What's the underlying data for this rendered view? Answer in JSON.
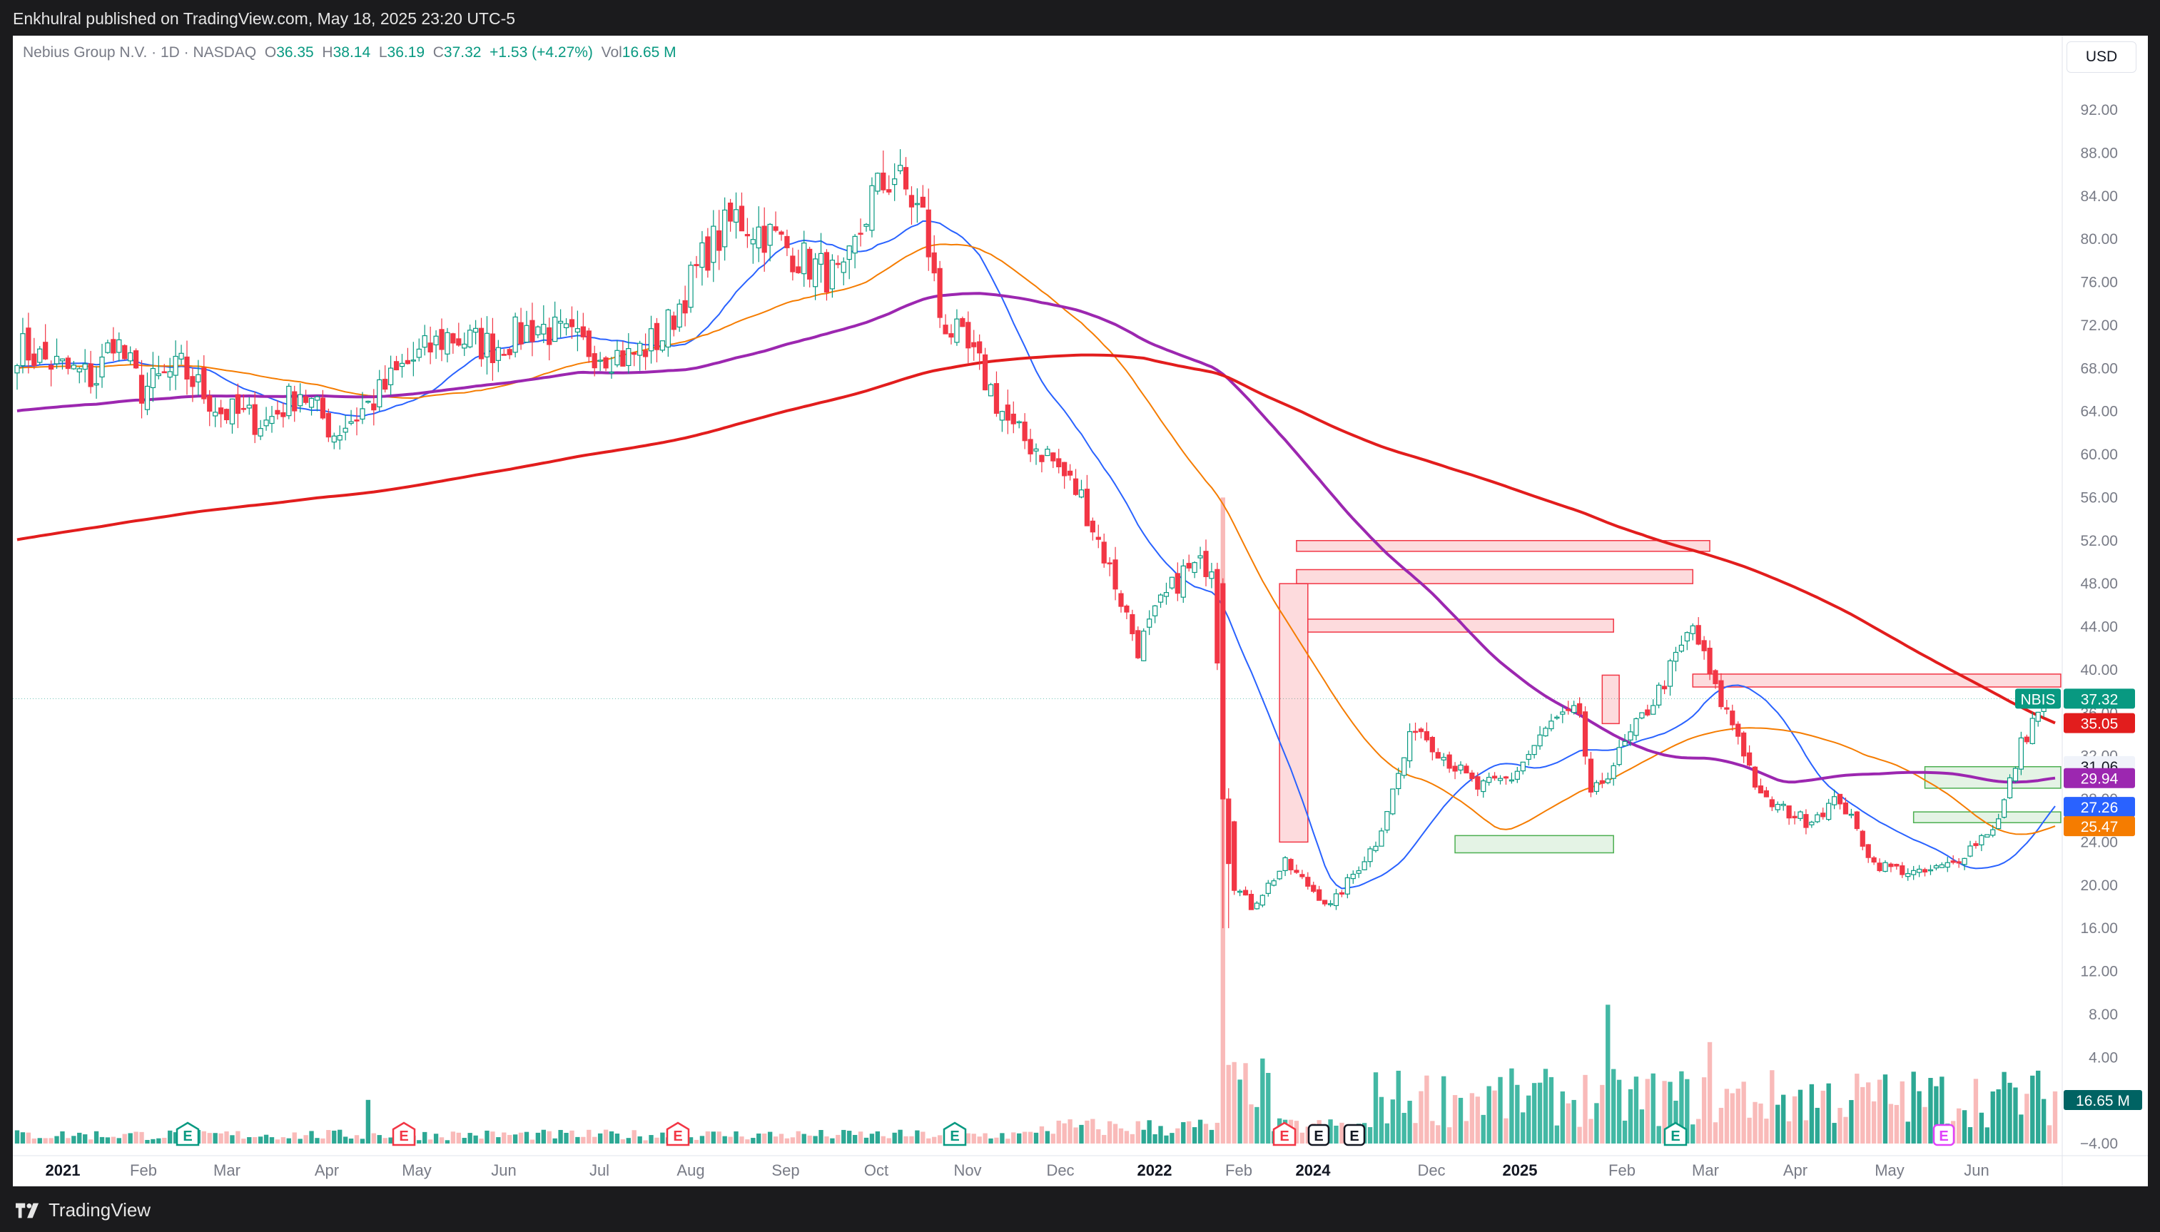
{
  "header": {
    "published": "Enkhulral published on TradingView.com, May 18, 2025 23:20 UTC-5"
  },
  "footer": {
    "brand": "TradingView"
  },
  "legend": {
    "symbol": "Nebius Group N.V. · 1D · NASDAQ",
    "o_label": "O",
    "o": "36.35",
    "h_label": "H",
    "h": "38.14",
    "l_label": "L",
    "l": "36.19",
    "c_label": "C",
    "c": "37.32",
    "change": "+1.53 (+4.27%)",
    "vol_label": "Vol",
    "vol": "16.65 M"
  },
  "currency": "USD",
  "colors": {
    "up": "#089981",
    "down": "#f23645",
    "ma20": "#2962ff",
    "ma50": "#f57c00",
    "ma100": "#9c27b0",
    "ma200": "#e21d1d",
    "supply": "#f23645",
    "demand": "#4caf50"
  },
  "chart_data": {
    "type": "candlestick",
    "y_axis_ticks": [
      "92.00",
      "88.00",
      "84.00",
      "80.00",
      "76.00",
      "72.00",
      "68.00",
      "64.00",
      "60.00",
      "56.00",
      "52.00",
      "48.00",
      "44.00",
      "40.00",
      "36.00",
      "32.00",
      "28.00",
      "24.00",
      "20.00",
      "16.00",
      "12.00",
      "8.00",
      "4.00",
      "0.000",
      "−4.00"
    ],
    "x_axis_labels": [
      "2021",
      "Feb",
      "Mar",
      "Apr",
      "May",
      "Jun",
      "Jul",
      "Aug",
      "Sep",
      "Oct",
      "Nov",
      "Dec",
      "2022",
      "Feb",
      "2024",
      "Dec",
      "2025",
      "Feb",
      "Mar",
      "Apr",
      "May",
      "Jun"
    ],
    "price_anchors": [
      {
        "i": 0,
        "p": 70
      },
      {
        "i": 8,
        "p": 68
      },
      {
        "i": 14,
        "p": 67
      },
      {
        "i": 17,
        "p": 71
      },
      {
        "i": 22,
        "p": 66
      },
      {
        "i": 29,
        "p": 68
      },
      {
        "i": 36,
        "p": 64
      },
      {
        "i": 44,
        "p": 63
      },
      {
        "i": 50,
        "p": 66
      },
      {
        "i": 56,
        "p": 62
      },
      {
        "i": 63,
        "p": 65
      },
      {
        "i": 68,
        "p": 68
      },
      {
        "i": 76,
        "p": 71
      },
      {
        "i": 84,
        "p": 70
      },
      {
        "i": 92,
        "p": 72
      },
      {
        "i": 100,
        "p": 70
      },
      {
        "i": 108,
        "p": 69
      },
      {
        "i": 114,
        "p": 71
      },
      {
        "i": 122,
        "p": 79
      },
      {
        "i": 127,
        "p": 82
      },
      {
        "i": 134,
        "p": 80
      },
      {
        "i": 139,
        "p": 78
      },
      {
        "i": 146,
        "p": 76
      },
      {
        "i": 151,
        "p": 84
      },
      {
        "i": 155,
        "p": 86
      },
      {
        "i": 160,
        "p": 82
      },
      {
        "i": 163,
        "p": 73
      },
      {
        "i": 170,
        "p": 68
      },
      {
        "i": 176,
        "p": 62
      },
      {
        "i": 182,
        "p": 60
      },
      {
        "i": 188,
        "p": 56
      },
      {
        "i": 194,
        "p": 48
      },
      {
        "i": 198,
        "p": 42
      },
      {
        "i": 202,
        "p": 46
      },
      {
        "i": 206,
        "p": 49
      },
      {
        "i": 211,
        "p": 50
      },
      {
        "i": 213,
        "p": 33
      },
      {
        "i": 215,
        "p": 20
      },
      {
        "i": 218,
        "p": 18
      },
      {
        "i": 224,
        "p": 22
      },
      {
        "i": 232,
        "p": 18
      },
      {
        "i": 240,
        "p": 24
      },
      {
        "i": 247,
        "p": 35
      },
      {
        "i": 252,
        "p": 32
      },
      {
        "i": 258,
        "p": 29
      },
      {
        "i": 264,
        "p": 30
      },
      {
        "i": 271,
        "p": 35
      },
      {
        "i": 276,
        "p": 36
      },
      {
        "i": 278,
        "p": 28
      },
      {
        "i": 284,
        "p": 33
      },
      {
        "i": 290,
        "p": 38
      },
      {
        "i": 296,
        "p": 44
      },
      {
        "i": 300,
        "p": 38
      },
      {
        "i": 304,
        "p": 34
      },
      {
        "i": 308,
        "p": 28
      },
      {
        "i": 316,
        "p": 26
      },
      {
        "i": 322,
        "p": 28
      },
      {
        "i": 328,
        "p": 22
      },
      {
        "i": 336,
        "p": 21
      },
      {
        "i": 342,
        "p": 22
      },
      {
        "i": 346,
        "p": 24
      },
      {
        "i": 350,
        "p": 26
      },
      {
        "i": 354,
        "p": 33
      },
      {
        "i": 358,
        "p": 37.3
      }
    ],
    "moving_averages": [
      {
        "period": 20,
        "last": "27.26"
      },
      {
        "period": 50,
        "last": "25.47"
      },
      {
        "period": 100,
        "last": "29.94"
      },
      {
        "period": 200,
        "last": "35.05"
      }
    ],
    "price_labels": [
      {
        "text": "NBIS",
        "value": 37.32
      },
      {
        "text": "37.32",
        "value": 37.32
      },
      {
        "text": "35.05",
        "value": 35.05
      },
      {
        "text": "31.06",
        "value": 31.06
      },
      {
        "text": "29.94",
        "value": 29.94
      },
      {
        "text": "27.26",
        "value": 27.26
      },
      {
        "text": "25.47",
        "value": 25.47
      },
      {
        "text": "16.65 M",
        "value": 16.65
      }
    ],
    "supply_zones": [
      {
        "i_from": 226,
        "i_to": 299,
        "p_from": 51.0,
        "p_to": 52.0
      },
      {
        "i_from": 226,
        "i_to": 296,
        "p_from": 48.0,
        "p_to": 49.3
      },
      {
        "i_from": 228,
        "i_to": 282,
        "p_from": 43.5,
        "p_to": 44.7
      },
      {
        "i_from": 223,
        "i_to": 228,
        "p_from": 24.0,
        "p_to": 48.0
      },
      {
        "i_from": 280,
        "i_to": 283,
        "p_from": 35.0,
        "p_to": 39.5
      },
      {
        "i_from": 296,
        "i_to": 361,
        "p_from": 38.4,
        "p_to": 39.6
      }
    ],
    "demand_zones": [
      {
        "i_from": 254,
        "i_to": 282,
        "p_from": 23.0,
        "p_to": 24.6
      },
      {
        "i_from": 337,
        "i_to": 361,
        "p_from": 29.0,
        "p_to": 31.0
      },
      {
        "i_from": 335,
        "i_to": 361,
        "p_from": 25.8,
        "p_to": 26.8
      }
    ],
    "earnings_markers": [
      {
        "i": 26,
        "text": "E",
        "kind": "up"
      },
      {
        "i": 62,
        "text": "E",
        "kind": "down"
      },
      {
        "i": 116,
        "text": "E",
        "kind": "down"
      },
      {
        "i": 163,
        "text": "E",
        "kind": "up"
      },
      {
        "i": 222,
        "text": "E",
        "kind": "down"
      },
      {
        "i": 229,
        "text": "E",
        "kind": "neutral"
      },
      {
        "i": 235,
        "text": "E",
        "kind": "neutral"
      },
      {
        "i": 301,
        "text": "E",
        "kind": "up"
      },
      {
        "i": 349,
        "text": "E",
        "kind": "future"
      }
    ],
    "grid": false,
    "last_price": 37.32
  }
}
